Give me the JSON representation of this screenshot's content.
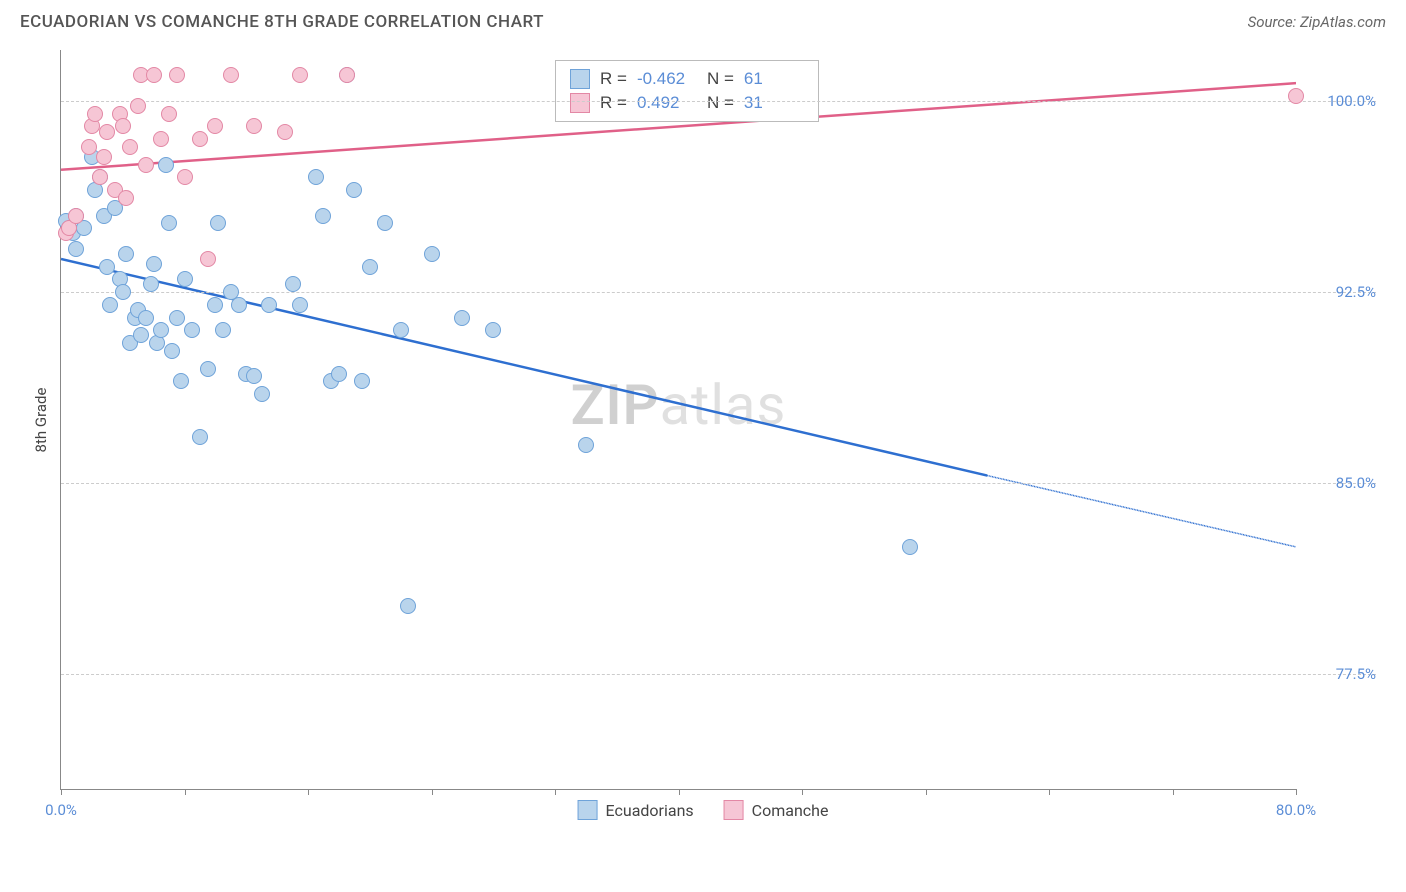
{
  "header": {
    "title": "ECUADORIAN VS COMANCHE 8TH GRADE CORRELATION CHART",
    "source": "Source: ZipAtlas.com"
  },
  "watermark": {
    "part1": "ZIP",
    "part2": "atlas"
  },
  "chart": {
    "type": "scatter",
    "y_axis_label": "8th Grade",
    "xlim": [
      0,
      80
    ],
    "ylim": [
      73,
      102
    ],
    "x_ticks": [
      0,
      8,
      16,
      24,
      32,
      40,
      48,
      56,
      64,
      72,
      80
    ],
    "x_tick_labels": {
      "0": "0.0%",
      "80": "80.0%"
    },
    "y_ticks": [
      77.5,
      85.0,
      92.5,
      100.0
    ],
    "y_tick_labels": [
      "77.5%",
      "85.0%",
      "92.5%",
      "100.0%"
    ],
    "background_color": "#ffffff",
    "grid_color": "#cccccc",
    "axis_color": "#888888",
    "tick_label_color": "#5b8dd6",
    "marker_radius": 8,
    "series": [
      {
        "name": "Ecuadorians",
        "fill_color": "#b9d4ec",
        "stroke_color": "#6fa3d9",
        "R": "-0.462",
        "N": "61",
        "trend": {
          "x1": 0,
          "y1": 93.8,
          "x2_solid": 60,
          "y2_solid": 85.3,
          "x2_dash": 80,
          "y2_dash": 82.5,
          "color": "#2e6fd0",
          "width": 2.5
        },
        "points": [
          [
            0.3,
            95.3
          ],
          [
            0.5,
            95.0
          ],
          [
            0.8,
            94.8
          ],
          [
            1.0,
            95.5
          ],
          [
            1.0,
            94.2
          ],
          [
            1.5,
            95.0
          ],
          [
            2.0,
            97.8
          ],
          [
            2.2,
            96.5
          ],
          [
            2.5,
            97.0
          ],
          [
            2.8,
            95.5
          ],
          [
            3.0,
            93.5
          ],
          [
            3.2,
            92.0
          ],
          [
            3.5,
            95.8
          ],
          [
            3.8,
            93.0
          ],
          [
            4.0,
            92.5
          ],
          [
            4.2,
            94.0
          ],
          [
            4.5,
            90.5
          ],
          [
            4.8,
            91.5
          ],
          [
            5.0,
            91.8
          ],
          [
            5.2,
            90.8
          ],
          [
            5.5,
            91.5
          ],
          [
            5.8,
            92.8
          ],
          [
            6.0,
            93.6
          ],
          [
            6.2,
            90.5
          ],
          [
            6.5,
            91.0
          ],
          [
            6.8,
            97.5
          ],
          [
            7.0,
            95.2
          ],
          [
            7.2,
            90.2
          ],
          [
            7.5,
            91.5
          ],
          [
            7.8,
            89.0
          ],
          [
            8.0,
            93.0
          ],
          [
            8.5,
            91.0
          ],
          [
            9.0,
            86.8
          ],
          [
            9.5,
            89.5
          ],
          [
            10.0,
            92.0
          ],
          [
            10.2,
            95.2
          ],
          [
            10.5,
            91.0
          ],
          [
            11.0,
            92.5
          ],
          [
            11.5,
            92.0
          ],
          [
            12.0,
            89.3
          ],
          [
            12.5,
            89.2
          ],
          [
            13.0,
            88.5
          ],
          [
            13.5,
            92.0
          ],
          [
            15.0,
            92.8
          ],
          [
            15.5,
            92.0
          ],
          [
            16.5,
            97.0
          ],
          [
            17.0,
            95.5
          ],
          [
            17.5,
            89.0
          ],
          [
            18.0,
            89.3
          ],
          [
            18.5,
            101.0
          ],
          [
            19.0,
            96.5
          ],
          [
            19.5,
            89.0
          ],
          [
            20.0,
            93.5
          ],
          [
            21.0,
            95.2
          ],
          [
            22.0,
            91.0
          ],
          [
            22.5,
            80.2
          ],
          [
            24.0,
            94.0
          ],
          [
            26.0,
            91.5
          ],
          [
            28.0,
            91.0
          ],
          [
            34.0,
            86.5
          ],
          [
            55.0,
            82.5
          ]
        ]
      },
      {
        "name": "Comanche",
        "fill_color": "#f6c6d5",
        "stroke_color": "#e388a5",
        "R": "0.492",
        "N": "31",
        "trend": {
          "x1": 0,
          "y1": 97.3,
          "x2_solid": 80,
          "y2_solid": 100.7,
          "x2_dash": 80,
          "y2_dash": 100.7,
          "color": "#e06088",
          "width": 2.5
        },
        "points": [
          [
            0.3,
            94.8
          ],
          [
            0.5,
            95.0
          ],
          [
            1.0,
            95.5
          ],
          [
            1.8,
            98.2
          ],
          [
            2.0,
            99.0
          ],
          [
            2.2,
            99.5
          ],
          [
            2.5,
            97.0
          ],
          [
            2.8,
            97.8
          ],
          [
            3.0,
            98.8
          ],
          [
            3.5,
            96.5
          ],
          [
            3.8,
            99.5
          ],
          [
            4.0,
            99.0
          ],
          [
            4.2,
            96.2
          ],
          [
            4.5,
            98.2
          ],
          [
            5.0,
            99.8
          ],
          [
            5.2,
            101.0
          ],
          [
            5.5,
            97.5
          ],
          [
            6.0,
            101.0
          ],
          [
            6.5,
            98.5
          ],
          [
            7.0,
            99.5
          ],
          [
            7.5,
            101.0
          ],
          [
            8.0,
            97.0
          ],
          [
            9.0,
            98.5
          ],
          [
            9.5,
            93.8
          ],
          [
            10.0,
            99.0
          ],
          [
            11.0,
            101.0
          ],
          [
            12.5,
            99.0
          ],
          [
            14.5,
            98.8
          ],
          [
            15.5,
            101.0
          ],
          [
            18.5,
            101.0
          ],
          [
            80.0,
            100.2
          ]
        ]
      }
    ]
  },
  "rn_box": {
    "rows": [
      {
        "swatch_fill": "#b9d4ec",
        "swatch_stroke": "#6fa3d9",
        "R": "-0.462",
        "N": "61"
      },
      {
        "swatch_fill": "#f6c6d5",
        "swatch_stroke": "#e388a5",
        "R": "0.492",
        "N": "31"
      }
    ]
  },
  "bottom_legend": [
    {
      "label": "Ecuadorians",
      "fill": "#b9d4ec",
      "stroke": "#6fa3d9"
    },
    {
      "label": "Comanche",
      "fill": "#f6c6d5",
      "stroke": "#e388a5"
    }
  ]
}
